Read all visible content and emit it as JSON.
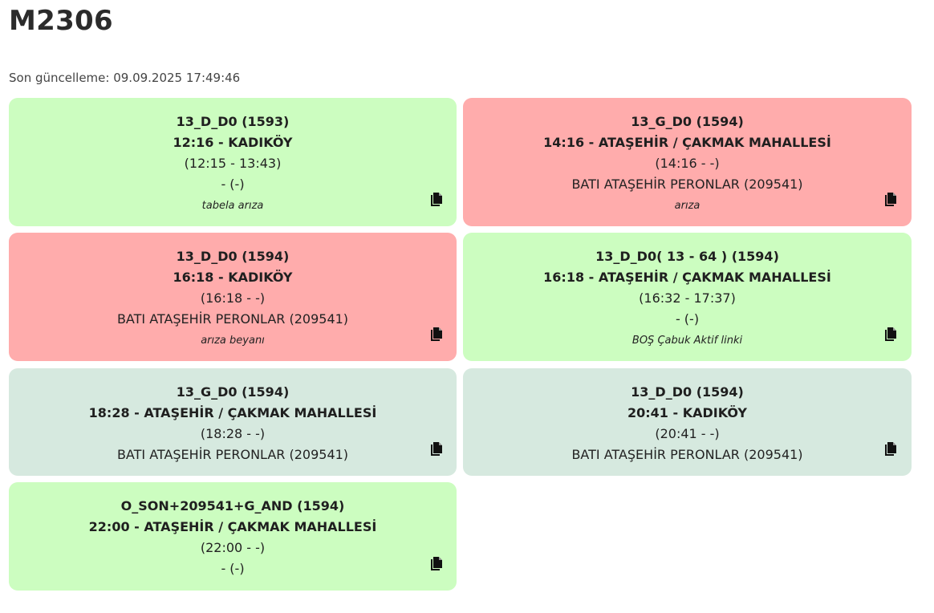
{
  "page": {
    "title": "M2306",
    "last_update_label": "Son güncelleme: 09.09.2025 17:49:46"
  },
  "colors": {
    "green": "#ccfdc0",
    "red": "#ffacac",
    "gray": "#d6e9df"
  },
  "cards": [
    {
      "route": "13_D_D0 (1593)",
      "trip": "12:16 - KADIKÖY",
      "times": "(12:15 - 13:43)",
      "location": "- (-)",
      "note": "tabela arıza",
      "status_color": "green",
      "icon": "copy-icon"
    },
    {
      "route": "13_G_D0 (1594)",
      "trip": "14:16 - ATAŞEHİR / ÇAKMAK MAHALLESİ",
      "times": "(14:16 - -)",
      "location": "BATI ATAŞEHİR PERONLAR (209541)",
      "note": "arıza",
      "status_color": "red",
      "icon": "copy-icon"
    },
    {
      "route": "13_D_D0 (1594)",
      "trip": "16:18 - KADIKÖY",
      "times": "(16:18 - -)",
      "location": "BATI ATAŞEHİR PERONLAR (209541)",
      "note": "arıza beyanı",
      "status_color": "red",
      "icon": "copy-icon"
    },
    {
      "route": "13_D_D0( 13 - 64 ) (1594)",
      "trip": "16:18 - ATAŞEHİR / ÇAKMAK MAHALLESİ",
      "times": "(16:32 - 17:37)",
      "location": "- (-)",
      "note": "BOŞ Çabuk Aktif linki",
      "status_color": "green",
      "icon": "copy-icon"
    },
    {
      "route": "13_G_D0 (1594)",
      "trip": "18:28 - ATAŞEHİR / ÇAKMAK MAHALLESİ",
      "times": "(18:28 - -)",
      "location": "BATI ATAŞEHİR PERONLAR (209541)",
      "note": "",
      "status_color": "gray",
      "icon": "copy-icon"
    },
    {
      "route": "13_D_D0 (1594)",
      "trip": "20:41 - KADIKÖY",
      "times": "(20:41 - -)",
      "location": "BATI ATAŞEHİR PERONLAR (209541)",
      "note": "",
      "status_color": "gray",
      "icon": "copy-icon"
    },
    {
      "route": "O_SON+209541+G_AND (1594)",
      "trip": "22:00 - ATAŞEHİR / ÇAKMAK MAHALLESİ",
      "times": "(22:00 - -)",
      "location": "- (-)",
      "note": "",
      "status_color": "green",
      "icon": "copy-icon"
    }
  ]
}
